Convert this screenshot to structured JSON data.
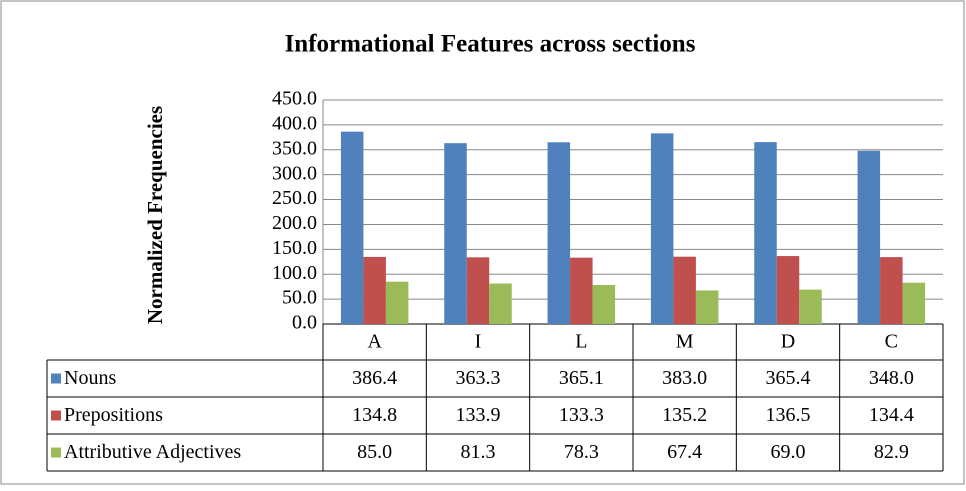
{
  "chart_data": {
    "type": "bar",
    "title": "Informational Features across sections",
    "y_label": "Normalized Frequencies",
    "categories": [
      "A",
      "I",
      "L",
      "M",
      "D",
      "C"
    ],
    "series": [
      {
        "name": "Nouns",
        "color": "#4f81bd",
        "values": [
          386.4,
          363.3,
          365.1,
          383.0,
          365.4,
          348.0
        ],
        "value_labels": [
          "386.4",
          "363.3",
          "365.1",
          "383.0",
          "365.4",
          "348.0"
        ]
      },
      {
        "name": "Prepositions",
        "color": "#c0504d",
        "values": [
          134.8,
          133.9,
          133.3,
          135.2,
          136.5,
          134.4
        ],
        "value_labels": [
          "134.8",
          "133.9",
          "133.3",
          "135.2",
          "136.5",
          "134.4"
        ]
      },
      {
        "name": "Attributive Adjectives",
        "color": "#9bbb59",
        "values": [
          85.0,
          81.3,
          78.3,
          67.4,
          69.0,
          82.9
        ],
        "value_labels": [
          "85.0",
          "81.3",
          "78.3",
          "67.4",
          "69.0",
          "82.9"
        ]
      }
    ],
    "ylim": [
      0,
      450
    ],
    "yticks": [
      {
        "value": 0,
        "label": "0.0"
      },
      {
        "value": 50,
        "label": "50.0"
      },
      {
        "value": 100,
        "label": "100.0"
      },
      {
        "value": 150,
        "label": "150.0"
      },
      {
        "value": 200,
        "label": "200.0"
      },
      {
        "value": 250,
        "label": "250.0"
      },
      {
        "value": 300,
        "label": "300.0"
      },
      {
        "value": 350,
        "label": "350.0"
      },
      {
        "value": 400,
        "label": "400.0"
      },
      {
        "value": 450,
        "label": "450.0"
      }
    ],
    "grid": true
  }
}
